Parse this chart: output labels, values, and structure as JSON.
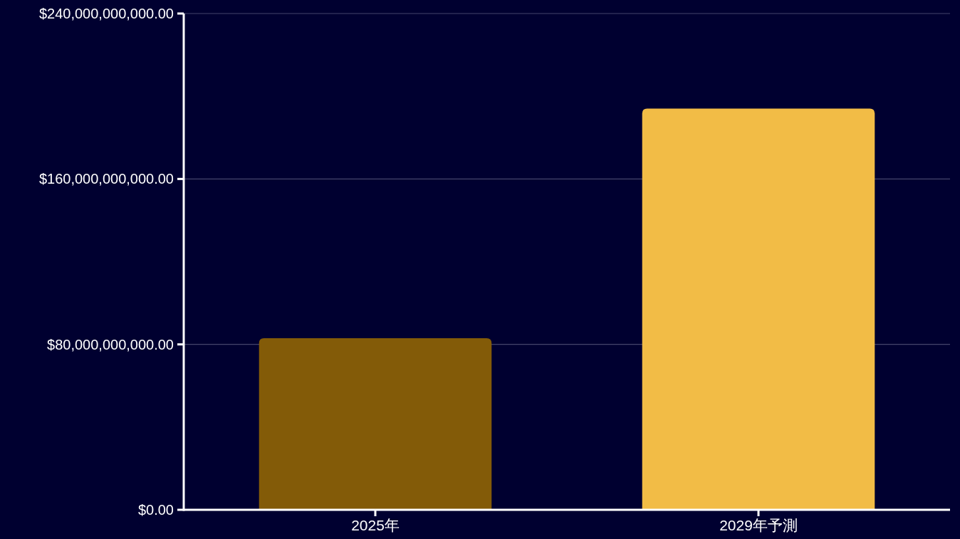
{
  "chart_data": {
    "type": "bar",
    "categories": [
      "2025年",
      "2029年予測"
    ],
    "values": [
      83000000000,
      194000000000
    ],
    "colors": [
      "#835b08",
      "#f2bc46"
    ],
    "ylim": [
      0,
      240000000000
    ],
    "yticks": [
      {
        "value": 0,
        "label": "$0.00"
      },
      {
        "value": 80000000000,
        "label": "$80,000,000,000.00"
      },
      {
        "value": 160000000000,
        "label": "$160,000,000,000.00"
      },
      {
        "value": 240000000000,
        "label": "$240,000,000,000.00"
      }
    ],
    "grid": "y"
  }
}
